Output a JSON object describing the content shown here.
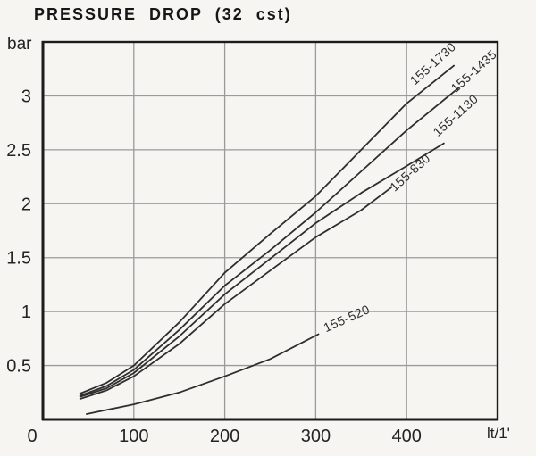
{
  "chart": {
    "title": "PRESSURE DROP (32 cst)",
    "ylabel": "bar",
    "xlabel": "lt/1'"
  },
  "chart_data": {
    "type": "line",
    "title": "PRESSURE DROP (32 cst)",
    "xlabel": "lt/1'",
    "ylabel": "bar",
    "xlim": [
      0,
      500
    ],
    "ylim": [
      0,
      3.5
    ],
    "x_ticks": [
      0,
      100,
      200,
      300,
      400
    ],
    "y_ticks": [
      0.5,
      1,
      1.5,
      2,
      2.5,
      3
    ],
    "grid": true,
    "legend_position": "labels-on-curves",
    "colors": {
      "background": "#f6f5f2",
      "frame": "#1c1c1c",
      "grid": "#9a9a9a",
      "curve": "#2e2e2e",
      "text": "#242424"
    },
    "series": [
      {
        "name": "155-1730",
        "points": [
          [
            41,
            0.24
          ],
          [
            70,
            0.34
          ],
          [
            100,
            0.5
          ],
          [
            150,
            0.9
          ],
          [
            200,
            1.36
          ],
          [
            250,
            1.72
          ],
          [
            300,
            2.07
          ],
          [
            350,
            2.5
          ],
          [
            400,
            2.93
          ],
          [
            452,
            3.28
          ]
        ],
        "label_at": [
          432,
          3.27
        ],
        "label_rotation": -42
      },
      {
        "name": "155-1435",
        "points": [
          [
            41,
            0.22
          ],
          [
            70,
            0.31
          ],
          [
            100,
            0.46
          ],
          [
            150,
            0.83
          ],
          [
            200,
            1.24
          ],
          [
            250,
            1.57
          ],
          [
            300,
            1.92
          ],
          [
            350,
            2.3
          ],
          [
            400,
            2.68
          ],
          [
            458,
            3.08
          ]
        ],
        "label_at": [
          477,
          3.2
        ],
        "label_rotation": -42
      },
      {
        "name": "155-1130",
        "points": [
          [
            41,
            0.21
          ],
          [
            70,
            0.29
          ],
          [
            100,
            0.43
          ],
          [
            150,
            0.77
          ],
          [
            200,
            1.16
          ],
          [
            250,
            1.49
          ],
          [
            300,
            1.82
          ],
          [
            350,
            2.1
          ],
          [
            400,
            2.35
          ],
          [
            441,
            2.56
          ]
        ],
        "label_at": [
          457,
          2.79
        ],
        "label_rotation": -42
      },
      {
        "name": "155-830",
        "points": [
          [
            41,
            0.19
          ],
          [
            70,
            0.27
          ],
          [
            100,
            0.4
          ],
          [
            150,
            0.7
          ],
          [
            200,
            1.07
          ],
          [
            250,
            1.38
          ],
          [
            300,
            1.69
          ],
          [
            350,
            1.94
          ],
          [
            383,
            2.15
          ]
        ],
        "label_at": [
          407,
          2.26
        ],
        "label_rotation": -42
      },
      {
        "name": "155-520",
        "points": [
          [
            48,
            0.05
          ],
          [
            100,
            0.14
          ],
          [
            150,
            0.25
          ],
          [
            200,
            0.4
          ],
          [
            250,
            0.56
          ],
          [
            303,
            0.79
          ]
        ],
        "label_at": [
          336,
          0.9
        ],
        "label_rotation": -24
      }
    ]
  }
}
